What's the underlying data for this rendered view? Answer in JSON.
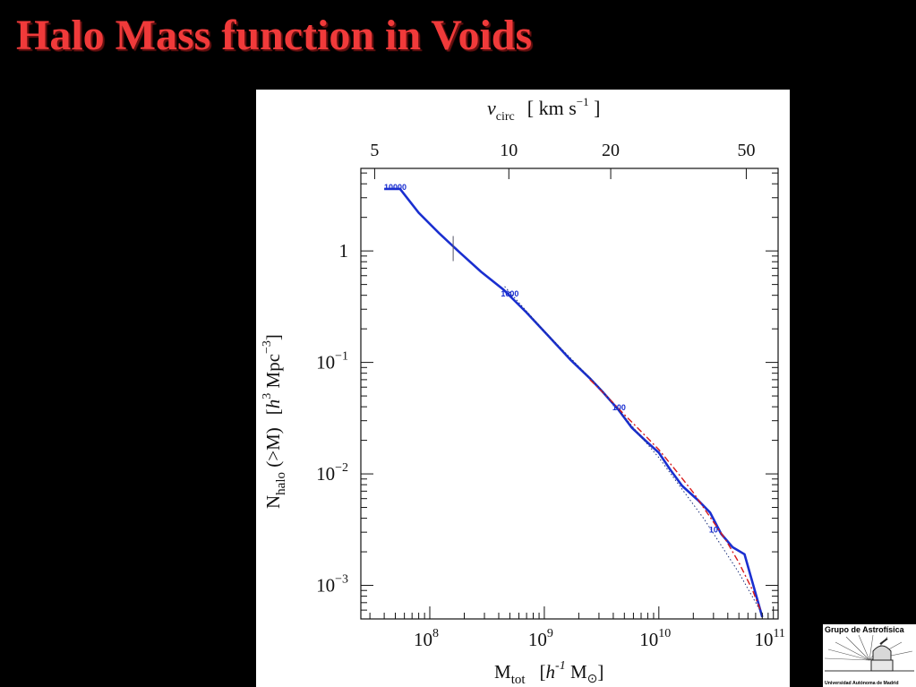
{
  "slide": {
    "title": "Halo Mass function in Voids"
  },
  "logo": {
    "top_text": "Grupo de Astrofísica",
    "bottom_text": "Universidad Autónoma de Madrid"
  },
  "chart_data": {
    "type": "line",
    "title": "",
    "xlabel": {
      "main": "M",
      "sub": "tot",
      "unit_pre": "[",
      "unit_h": "h",
      "unit_exp": "-1",
      "unit_m": " M",
      "unit_sun": "⊙",
      "unit_post": "]"
    },
    "ylabel": {
      "main": "N",
      "sub": "halo",
      "cond": " (>M)",
      "unit_pre": "[",
      "unit_h": "h",
      "unit_exp1": "3",
      "unit_mid": " Mpc",
      "unit_exp2": "−3",
      "unit_post": "]"
    },
    "toplabel": {
      "v": "v",
      "sub": "circ",
      "unit_pre": "[ km s",
      "unit_exp": "−1",
      "unit_post": " ]"
    },
    "xscale": "log",
    "yscale": "log",
    "xlim": [
      25000000.0,
      110000000000.0
    ],
    "ylim": [
      0.0005,
      5.5
    ],
    "x_ticks": [
      {
        "value": 100000000.0,
        "base": "10",
        "exp": "8"
      },
      {
        "value": 1000000000.0,
        "base": "10",
        "exp": "9"
      },
      {
        "value": 10000000000.0,
        "base": "10",
        "exp": "10"
      },
      {
        "value": 100000000000.0,
        "base": "10",
        "exp": "11"
      }
    ],
    "y_ticks": [
      {
        "value": 1,
        "base": "1",
        "exp": ""
      },
      {
        "value": 0.1,
        "base": "10",
        "exp": "−1"
      },
      {
        "value": 0.01,
        "base": "10",
        "exp": "−2"
      },
      {
        "value": 0.001,
        "base": "10",
        "exp": "−3"
      }
    ],
    "top_ticks": [
      {
        "label": "5",
        "mass": 33000000.0
      },
      {
        "label": "10",
        "mass": 490000000.0
      },
      {
        "label": "20",
        "mass": 3800000000.0
      },
      {
        "label": "50",
        "mass": 58000000000.0
      }
    ],
    "series": [
      {
        "style": "solid",
        "color": "#1a2fd0",
        "x": [
          40000000.0,
          55000000.0,
          80000000.0,
          120000000.0,
          180000000.0,
          280000000.0,
          440000000.0,
          700000000.0,
          1100000000.0,
          1700000000.0,
          2500000000.0,
          3200000000.0,
          4400000000.0,
          5800000000.0,
          7800000000.0,
          10000000000.0,
          12500000000.0,
          16000000000.0,
          22000000000.0,
          28000000000.0,
          35000000000.0,
          44000000000.0,
          56000000000.0,
          80000000000.0
        ],
        "y": [
          3.6,
          3.6,
          2.2,
          1.45,
          0.98,
          0.65,
          0.45,
          0.28,
          0.17,
          0.105,
          0.072,
          0.055,
          0.038,
          0.026,
          0.0195,
          0.0155,
          0.011,
          0.0078,
          0.0058,
          0.0045,
          0.0029,
          0.0022,
          0.0019,
          0.00052
        ]
      },
      {
        "style": "dashdot",
        "color": "#d81a1a",
        "x": [
          2500000000.0,
          3500000000.0,
          5000000000.0,
          7000000000.0,
          10000000000.0,
          14000000000.0,
          20000000000.0,
          28000000000.0,
          38000000000.0,
          50000000000.0,
          66000000000.0,
          78000000000.0
        ],
        "y": [
          0.07,
          0.05,
          0.034,
          0.024,
          0.0165,
          0.0108,
          0.0068,
          0.0041,
          0.0026,
          0.0016,
          0.0009,
          0.00058
        ]
      },
      {
        "style": "dotted",
        "color": "#1a2f7a",
        "x": [
          450000000.0,
          1000000000.0,
          3000000000.0,
          10000000000.0,
          25000000000.0,
          50000000000.0,
          80000000000.0
        ],
        "y": [
          0.48,
          0.19,
          0.06,
          0.014,
          0.0039,
          0.0013,
          0.00055
        ]
      }
    ],
    "annotations": [
      {
        "text": "10000",
        "x": 50000000.0,
        "y": 3.8
      },
      {
        "text": "1000",
        "x": 500000000.0,
        "y": 0.42
      },
      {
        "text": "100",
        "x": 4500000000.0,
        "y": 0.04
      },
      {
        "text": "10",
        "x": 30000000000.0,
        "y": 0.0032
      }
    ],
    "marker": {
      "x": 160000000.0,
      "y": 1.05
    }
  }
}
